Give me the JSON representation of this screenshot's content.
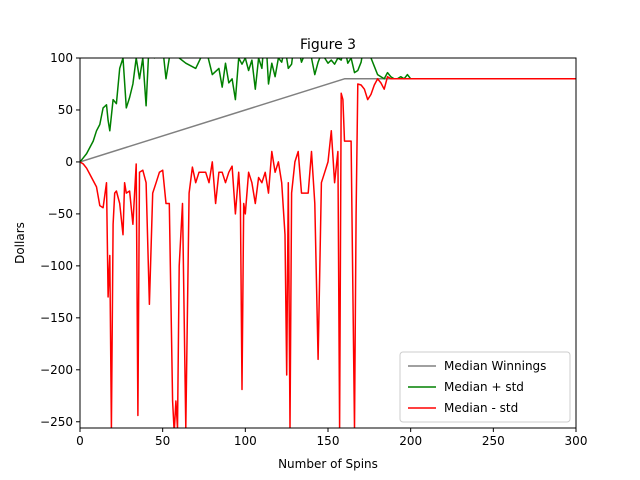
{
  "chart_data": {
    "type": "line",
    "title": "Figure 3",
    "xlabel": "Number of Spins",
    "ylabel": "Dollars",
    "xlim": [
      0,
      300
    ],
    "ylim": [
      -256,
      100
    ],
    "xticks": [
      0,
      50,
      100,
      150,
      200,
      250,
      300
    ],
    "yticks": [
      -250,
      -200,
      -150,
      -100,
      -50,
      0,
      50,
      100
    ],
    "grid": false,
    "legend": "lower-right",
    "series": [
      {
        "name": "Median Winnings",
        "color": "#808080",
        "x": [
          0,
          160,
          161,
          300
        ],
        "y": [
          0,
          80,
          80,
          80
        ]
      },
      {
        "name": "Median + std",
        "color": "#008000",
        "x": [
          0,
          2,
          4,
          6,
          8,
          10,
          12,
          14,
          16,
          17,
          18,
          20,
          22,
          24,
          26,
          28,
          30,
          32,
          34,
          36,
          38,
          40,
          42,
          45,
          48,
          52,
          56,
          60,
          64,
          70,
          76,
          80,
          84,
          86,
          88,
          90,
          92,
          94,
          96,
          98,
          100,
          102,
          104,
          106,
          108,
          110,
          112,
          114,
          116,
          118,
          120,
          122,
          124,
          126,
          128,
          130,
          132,
          134,
          136,
          138,
          140,
          142,
          144,
          146,
          148,
          150,
          152,
          154,
          156,
          158,
          160,
          162,
          164,
          166,
          168,
          170,
          172,
          174,
          176,
          178,
          180,
          182,
          184,
          186,
          188,
          190,
          192,
          194,
          196,
          198,
          200,
          202,
          300
        ],
        "y": [
          0,
          4,
          8,
          14,
          20,
          30,
          36,
          52,
          55,
          40,
          30,
          60,
          56,
          90,
          100,
          52,
          62,
          75,
          100,
          80,
          100,
          54,
          120,
          100,
          140,
          80,
          120,
          100,
          95,
          90,
          110,
          84,
          90,
          72,
          95,
          76,
          80,
          60,
          100,
          94,
          100,
          88,
          98,
          70,
          100,
          90,
          130,
          75,
          95,
          82,
          100,
          96,
          110,
          90,
          94,
          120,
          110,
          96,
          104,
          115,
          100,
          84,
          96,
          104,
          100,
          95,
          98,
          94,
          100,
          98,
          110,
          95,
          100,
          86,
          88,
          96,
          115,
          112,
          100,
          92,
          84,
          82,
          80,
          86,
          82,
          80,
          80,
          82,
          80,
          84,
          80,
          80,
          80
        ]
      },
      {
        "name": "Median - std",
        "color": "#ff0000",
        "x": [
          0,
          2,
          4,
          6,
          8,
          10,
          12,
          14,
          16,
          17,
          18,
          19,
          20,
          21,
          22,
          24,
          26,
          27,
          28,
          30,
          32,
          34,
          35,
          36,
          38,
          40,
          42,
          44,
          46,
          48,
          50,
          52,
          54,
          56,
          57,
          58,
          59,
          60,
          62,
          64,
          66,
          68,
          70,
          72,
          74,
          76,
          78,
          80,
          82,
          84,
          86,
          88,
          90,
          92,
          94,
          96,
          97,
          98,
          99,
          100,
          102,
          104,
          106,
          108,
          110,
          112,
          114,
          116,
          118,
          120,
          122,
          124,
          125,
          126,
          127,
          128,
          130,
          132,
          134,
          136,
          138,
          140,
          142,
          144,
          146,
          148,
          150,
          152,
          154,
          156,
          157,
          158,
          159,
          160,
          162,
          164,
          166,
          167,
          168,
          170,
          172,
          174,
          176,
          178,
          180,
          182,
          184,
          186,
          188,
          190,
          192,
          194,
          196,
          198,
          200,
          202,
          300
        ],
        "y": [
          0,
          -2,
          -6,
          -12,
          -18,
          -24,
          -42,
          -44,
          -20,
          -130,
          -90,
          -256,
          -60,
          -30,
          -28,
          -40,
          -70,
          -20,
          -30,
          -28,
          -60,
          -2,
          -244,
          -10,
          -8,
          -20,
          -137,
          -30,
          -20,
          -10,
          -8,
          -40,
          -40,
          -230,
          -260,
          -230,
          -256,
          -100,
          -40,
          -256,
          -30,
          -5,
          -20,
          -10,
          -10,
          -10,
          -20,
          0,
          -40,
          -10,
          -10,
          -20,
          -10,
          -4,
          -50,
          -10,
          -40,
          -219,
          -40,
          -50,
          -10,
          -20,
          -40,
          -15,
          -20,
          -10,
          -30,
          10,
          -10,
          0,
          -20,
          -70,
          -205,
          -20,
          -256,
          -30,
          0,
          10,
          -30,
          -30,
          -30,
          10,
          -40,
          -190,
          -20,
          -10,
          0,
          30,
          -20,
          10,
          -256,
          66,
          60,
          20,
          20,
          20,
          -256,
          -50,
          75,
          74,
          70,
          60,
          65,
          74,
          80,
          76,
          70,
          82,
          80,
          80,
          80,
          80,
          80,
          80,
          80,
          80,
          80
        ]
      }
    ]
  }
}
